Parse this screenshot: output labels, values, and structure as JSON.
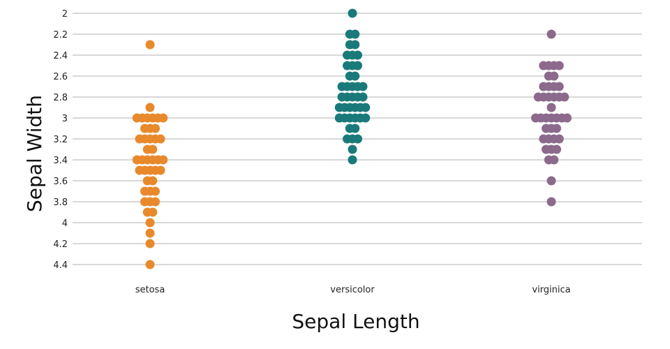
{
  "chart_data": {
    "type": "scatter",
    "title": "",
    "xlabel": "Sepal Length",
    "ylabel": "Sepal Width",
    "categories": [
      "setosa",
      "versicolor",
      "virginica"
    ],
    "yticks": [
      "2",
      "2.2",
      "2.4",
      "2.6",
      "2.8",
      "3",
      "3.2",
      "3.4",
      "3.6",
      "3.8",
      "4",
      "4.2",
      "4.4"
    ],
    "ylim": [
      2,
      4.4
    ],
    "y_inverted": true,
    "grid": true,
    "series": [
      {
        "category": "setosa",
        "color": "#e8892b",
        "values": [
          2.3,
          2.9,
          3.0,
          3.0,
          3.0,
          3.0,
          3.0,
          3.0,
          3.1,
          3.1,
          3.1,
          3.2,
          3.2,
          3.2,
          3.2,
          3.2,
          3.3,
          3.3,
          3.4,
          3.4,
          3.4,
          3.4,
          3.4,
          3.4,
          3.5,
          3.5,
          3.5,
          3.5,
          3.5,
          3.6,
          3.6,
          3.7,
          3.7,
          3.7,
          3.8,
          3.8,
          3.8,
          3.9,
          3.9,
          4.0,
          4.1,
          4.2,
          4.4
        ]
      },
      {
        "category": "versicolor",
        "color": "#1a7a7a",
        "values": [
          2.0,
          2.2,
          2.2,
          2.3,
          2.3,
          2.4,
          2.4,
          2.4,
          2.5,
          2.5,
          2.5,
          2.6,
          2.6,
          2.7,
          2.7,
          2.7,
          2.7,
          2.7,
          2.8,
          2.8,
          2.8,
          2.8,
          2.8,
          2.9,
          2.9,
          2.9,
          2.9,
          2.9,
          2.9,
          3.0,
          3.0,
          3.0,
          3.0,
          3.0,
          3.0,
          3.1,
          3.1,
          3.2,
          3.2,
          3.2,
          3.3,
          3.4
        ]
      },
      {
        "category": "virginica",
        "color": "#8c6a8c",
        "values": [
          2.2,
          2.5,
          2.5,
          2.5,
          2.5,
          2.6,
          2.6,
          2.7,
          2.7,
          2.7,
          2.7,
          2.8,
          2.8,
          2.8,
          2.8,
          2.8,
          2.8,
          2.9,
          3.0,
          3.0,
          3.0,
          3.0,
          3.0,
          3.0,
          3.0,
          3.1,
          3.1,
          3.1,
          3.2,
          3.2,
          3.2,
          3.2,
          3.3,
          3.3,
          3.3,
          3.4,
          3.4,
          3.6,
          3.8
        ]
      }
    ]
  }
}
